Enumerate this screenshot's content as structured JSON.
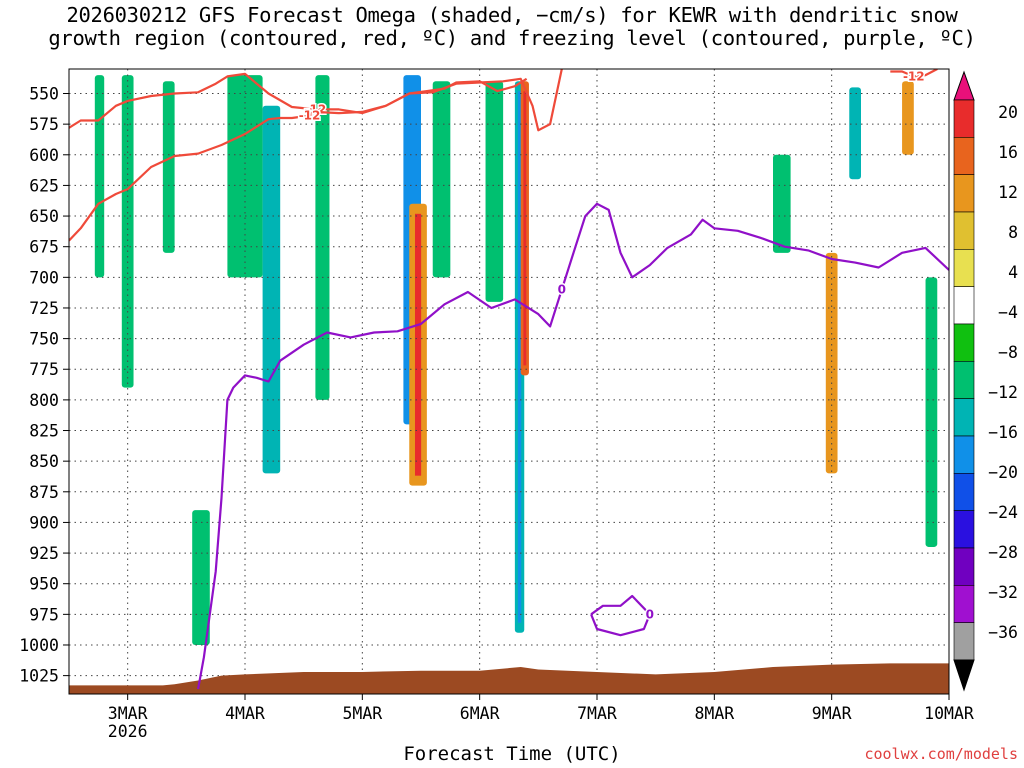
{
  "title_line1": "2026030212 GFS Forecast Omega (shaded, −cm/s) for KEWR with dendritic snow",
  "title_line2": "growth region (contoured, red, ºC) and freezing level (contoured, purple, ºC)",
  "xlabel": "Forecast Time (UTC)",
  "credit": "coolwx.com/models",
  "chart_data": {
    "type": "heatmap",
    "title": "2026030212 GFS Forecast Omega (shaded, −cm/s) for KEWR with dendritic snow growth region (contoured, red, ºC) and freezing level (contoured, purple, ºC)",
    "xlabel": "Forecast Time (UTC)",
    "ylabel": "",
    "x_range_days": [
      2.5,
      10.0
    ],
    "x_ticks": [
      {
        "day": 3,
        "label": "3MAR",
        "sublabel": "2026"
      },
      {
        "day": 4,
        "label": "4MAR"
      },
      {
        "day": 5,
        "label": "5MAR"
      },
      {
        "day": 6,
        "label": "6MAR"
      },
      {
        "day": 7,
        "label": "7MAR"
      },
      {
        "day": 8,
        "label": "8MAR"
      },
      {
        "day": 9,
        "label": "9MAR"
      },
      {
        "day": 10,
        "label": "10MAR"
      }
    ],
    "y_ticks": [
      550,
      575,
      600,
      625,
      650,
      675,
      700,
      725,
      750,
      775,
      800,
      825,
      850,
      875,
      900,
      925,
      950,
      975,
      1000,
      1025
    ],
    "y_range": [
      530,
      1040
    ],
    "grid": true,
    "colorbar": {
      "labels": [
        "20",
        "16",
        "12",
        "8",
        "4",
        "−4",
        "−8",
        "−12",
        "−16",
        "−20",
        "−24",
        "−28",
        "−32",
        "−36"
      ],
      "colors": [
        "#e8107a",
        "#e82c2c",
        "#e8641e",
        "#e8961e",
        "#e0c030",
        "#e8e050",
        "#ffffff",
        "#10c010",
        "#00c070",
        "#00b4b4",
        "#1090e8",
        "#1050e8",
        "#2a10e0",
        "#7000c0",
        "#a010d0",
        "#a0a0a0",
        "#000000"
      ]
    },
    "contours": [
      {
        "name": "dendritic snow growth region",
        "color": "#ef4a3a",
        "level_label": "-12",
        "lines": [
          [
            [
              2.5,
              578
            ],
            [
              2.6,
              572
            ],
            [
              2.75,
              572
            ],
            [
              2.9,
              560
            ],
            [
              3.0,
              556
            ],
            [
              3.2,
              552
            ],
            [
              3.4,
              550
            ],
            [
              3.6,
              549
            ],
            [
              3.75,
              542
            ],
            [
              3.85,
              536
            ],
            [
              4.0,
              534
            ],
            [
              4.2,
              550
            ],
            [
              4.4,
              561
            ],
            [
              4.6,
              563
            ],
            [
              4.8,
              563
            ],
            [
              5.0,
              566
            ],
            [
              5.2,
              560
            ],
            [
              5.4,
              550
            ],
            [
              5.6,
              549
            ],
            [
              5.8,
              542
            ],
            [
              6.0,
              541
            ],
            [
              6.2,
              540
            ],
            [
              6.35,
              538
            ],
            [
              6.45,
              560
            ],
            [
              6.5,
              580
            ],
            [
              6.6,
              575
            ],
            [
              6.7,
              530
            ]
          ],
          [
            [
              2.5,
              670
            ],
            [
              2.6,
              660
            ],
            [
              2.75,
              640
            ],
            [
              2.9,
              632
            ],
            [
              3.0,
              628
            ],
            [
              3.2,
              610
            ],
            [
              3.4,
              601
            ],
            [
              3.6,
              599
            ],
            [
              3.8,
              592
            ],
            [
              4.0,
              583
            ],
            [
              4.2,
              571
            ],
            [
              4.3,
              570
            ],
            [
              4.4,
              570
            ],
            [
              4.55,
              568
            ],
            [
              4.6,
              565
            ],
            [
              4.8,
              566
            ],
            [
              5.0,
              565
            ],
            [
              5.2,
              560
            ],
            [
              5.4,
              550
            ],
            [
              5.55,
              548
            ],
            [
              5.7,
              546
            ],
            [
              5.8,
              541
            ],
            [
              6.0,
              540
            ],
            [
              6.15,
              548
            ],
            [
              6.3,
              544
            ],
            [
              6.4,
              538
            ]
          ],
          [
            [
              9.5,
              532
            ],
            [
              9.6,
              532
            ],
            [
              9.7,
              536
            ],
            [
              9.8,
              535
            ],
            [
              9.9,
              530
            ]
          ]
        ]
      },
      {
        "name": "freezing level",
        "color": "#9010c8",
        "level_label": "0",
        "lines": [
          [
            [
              3.6,
              1036
            ],
            [
              3.65,
              1010
            ],
            [
              3.75,
              940
            ],
            [
              3.8,
              880
            ],
            [
              3.85,
              800
            ],
            [
              3.9,
              790
            ],
            [
              4.0,
              780
            ],
            [
              4.1,
              782
            ],
            [
              4.2,
              785
            ],
            [
              4.3,
              768
            ],
            [
              4.5,
              755
            ],
            [
              4.7,
              745
            ],
            [
              4.9,
              749
            ],
            [
              5.1,
              745
            ],
            [
              5.3,
              744
            ],
            [
              5.5,
              738
            ],
            [
              5.7,
              722
            ],
            [
              5.9,
              712
            ],
            [
              6.1,
              725
            ],
            [
              6.3,
              718
            ],
            [
              6.5,
              730
            ],
            [
              6.6,
              740
            ],
            [
              6.7,
              710
            ],
            [
              6.8,
              680
            ],
            [
              6.9,
              650
            ],
            [
              7.0,
              640
            ],
            [
              7.1,
              645
            ],
            [
              7.2,
              680
            ],
            [
              7.3,
              700
            ],
            [
              7.45,
              690
            ],
            [
              7.6,
              676
            ],
            [
              7.8,
              665
            ],
            [
              7.9,
              653
            ],
            [
              8.0,
              660
            ],
            [
              8.2,
              662
            ],
            [
              8.4,
              668
            ],
            [
              8.6,
              675
            ],
            [
              8.8,
              678
            ],
            [
              9.0,
              685
            ],
            [
              9.2,
              688
            ],
            [
              9.4,
              692
            ],
            [
              9.6,
              680
            ],
            [
              9.8,
              676
            ],
            [
              10.0,
              694
            ]
          ],
          [
            [
              6.95,
              975
            ],
            [
              7.05,
              968
            ],
            [
              7.2,
              968
            ],
            [
              7.3,
              960
            ],
            [
              7.45,
              975
            ],
            [
              7.4,
              987
            ],
            [
              7.2,
              992
            ],
            [
              7.0,
              987
            ],
            [
              6.95,
              975
            ]
          ]
        ]
      }
    ],
    "terrain_color": "#9c4a22",
    "terrain": [
      [
        2.5,
        1033
      ],
      [
        3.3,
        1033
      ],
      [
        3.4,
        1032
      ],
      [
        3.6,
        1029
      ],
      [
        3.8,
        1025
      ],
      [
        4.0,
        1024
      ],
      [
        4.5,
        1022
      ],
      [
        5.0,
        1022
      ],
      [
        5.5,
        1021
      ],
      [
        6.0,
        1021
      ],
      [
        6.35,
        1018
      ],
      [
        6.5,
        1020
      ],
      [
        7.0,
        1022
      ],
      [
        7.5,
        1024
      ],
      [
        8.0,
        1022
      ],
      [
        8.5,
        1018
      ],
      [
        9.0,
        1016
      ],
      [
        9.5,
        1015
      ],
      [
        10.0,
        1015
      ]
    ],
    "omega_regions": [
      {
        "x": [
          2.72,
          2.8
        ],
        "p": [
          535,
          700
        ],
        "value": -6
      },
      {
        "x": [
          2.95,
          3.05
        ],
        "p": [
          535,
          790
        ],
        "value": -7
      },
      {
        "x": [
          3.3,
          3.4
        ],
        "p": [
          540,
          680
        ],
        "value": -6
      },
      {
        "x": [
          3.85,
          4.15
        ],
        "p": [
          535,
          700
        ],
        "value": -7
      },
      {
        "x": [
          4.15,
          4.3
        ],
        "p": [
          560,
          860
        ],
        "value": -8
      },
      {
        "x": [
          4.6,
          4.72
        ],
        "p": [
          535,
          800
        ],
        "value": -6
      },
      {
        "x": [
          5.35,
          5.5
        ],
        "p": [
          535,
          820
        ],
        "value": -13
      },
      {
        "x": [
          5.6,
          5.75
        ],
        "p": [
          540,
          700
        ],
        "value": -7
      },
      {
        "x": [
          6.05,
          6.2
        ],
        "p": [
          540,
          720
        ],
        "value": -6
      },
      {
        "x": [
          6.3,
          6.38
        ],
        "p": [
          540,
          990
        ],
        "value": -10
      },
      {
        "x": [
          3.55,
          3.7
        ],
        "p": [
          890,
          1000
        ],
        "value": -6
      },
      {
        "x": [
          8.5,
          8.65
        ],
        "p": [
          600,
          680
        ],
        "value": -7
      },
      {
        "x": [
          9.15,
          9.25
        ],
        "p": [
          545,
          620
        ],
        "value": -8
      },
      {
        "x": [
          9.8,
          9.9
        ],
        "p": [
          700,
          920
        ],
        "value": -7
      },
      {
        "x": [
          5.4,
          5.55
        ],
        "p": [
          640,
          870
        ],
        "value": 10
      },
      {
        "x": [
          6.35,
          6.42
        ],
        "p": [
          540,
          780
        ],
        "value": 15
      },
      {
        "x": [
          8.95,
          9.05
        ],
        "p": [
          680,
          860
        ],
        "value": 8
      },
      {
        "x": [
          9.6,
          9.7
        ],
        "p": [
          540,
          600
        ],
        "value": 8
      }
    ]
  }
}
